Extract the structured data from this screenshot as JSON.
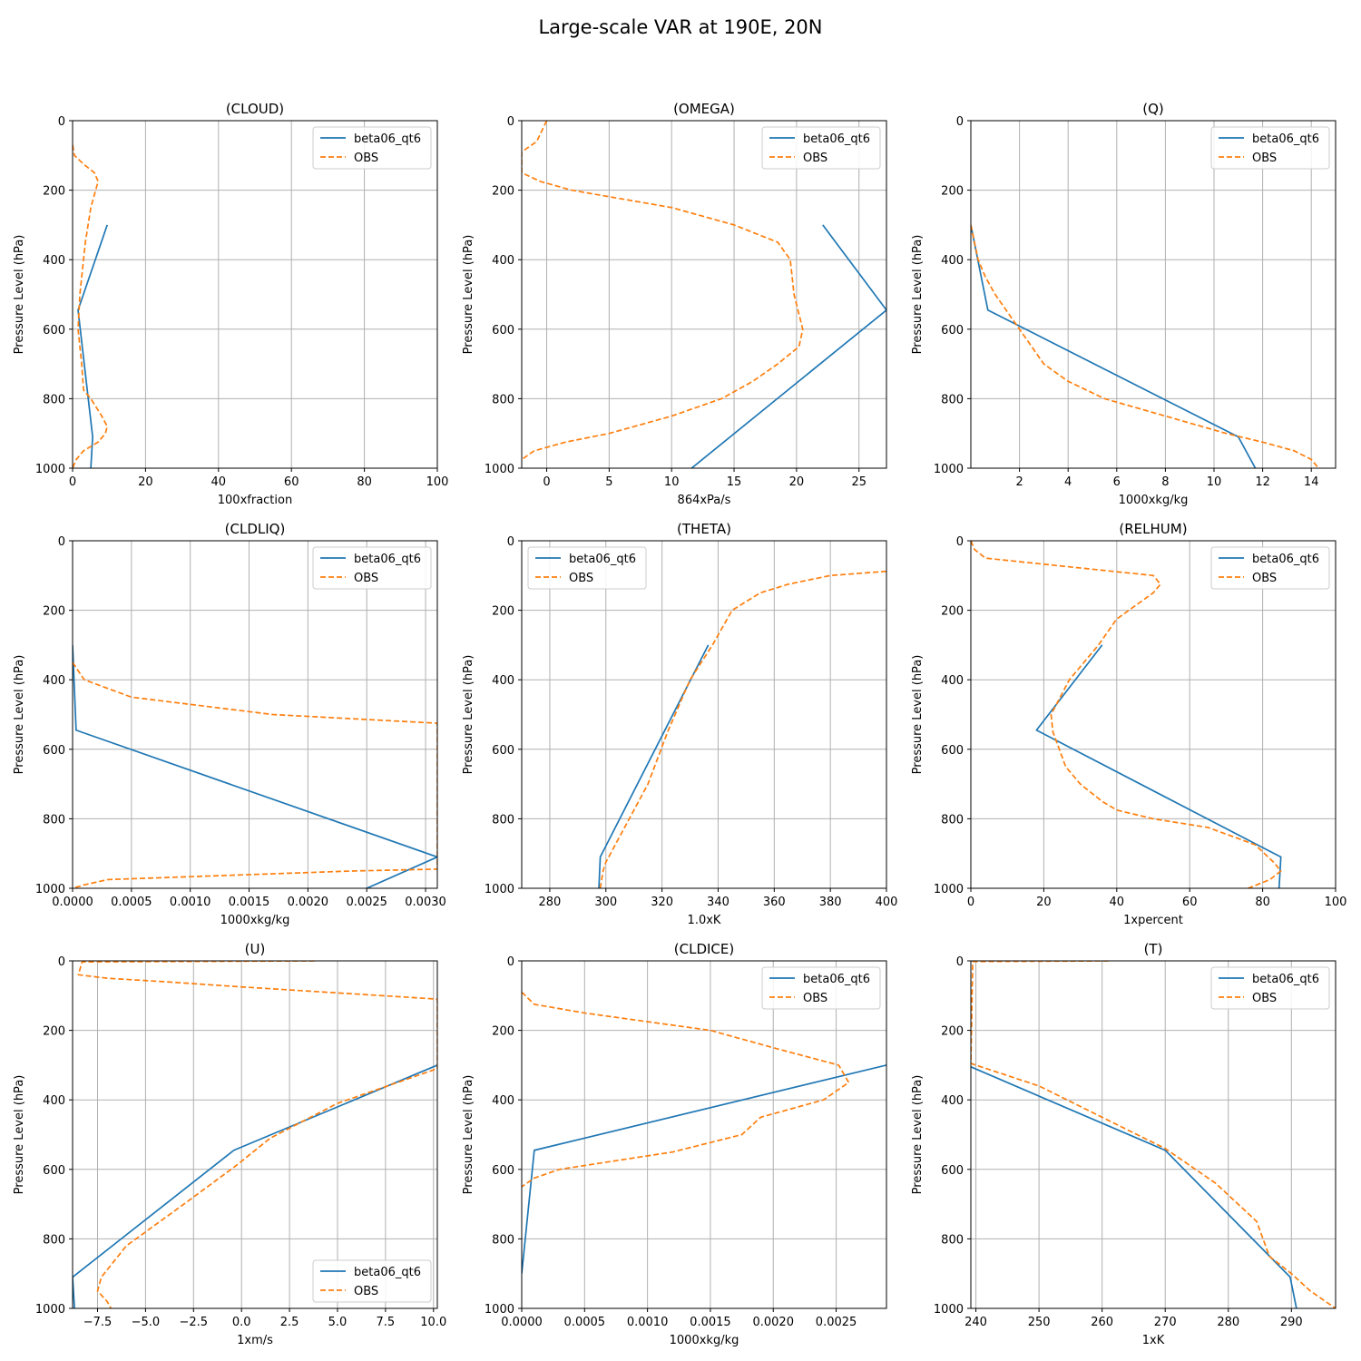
{
  "figure": {
    "suptitle": "Large-scale VAR at 190E, 20N"
  },
  "style": {
    "model_color": "#1f77b4",
    "obs_color": "#ff7f0e",
    "grid_color": "#b0b0b0"
  },
  "chart_data": [
    {
      "type": "line",
      "title": "(CLOUD)",
      "xlabel": "100xfraction",
      "ylabel": "Pressure Level (hPa)",
      "xlim": [
        0,
        100
      ],
      "ylim": [
        1000,
        0
      ],
      "xticks": [
        0,
        20,
        40,
        60,
        80,
        100
      ],
      "xticklabels": [
        "0",
        "20",
        "40",
        "60",
        "80",
        "100"
      ],
      "yticks": [
        0,
        200,
        400,
        600,
        800,
        1000
      ],
      "grid": true,
      "legend_loc": "upper right",
      "series": [
        {
          "name": "beta06_qt6",
          "style": "solid",
          "x": [
            9.5,
            1.5,
            5.5,
            5.0
          ],
          "y": [
            300,
            545,
            910,
            1000
          ]
        },
        {
          "name": "OBS",
          "style": "dashed",
          "x": [
            0,
            0.5,
            3,
            6,
            7,
            5,
            3.5,
            2.5,
            2,
            1.5,
            2.5,
            3,
            5,
            8,
            9.5,
            9,
            7,
            3,
            1,
            0
          ],
          "y": [
            70,
            100,
            125,
            150,
            175,
            250,
            350,
            450,
            500,
            600,
            700,
            775,
            800,
            850,
            880,
            900,
            925,
            950,
            975,
            1000
          ]
        }
      ]
    },
    {
      "type": "line",
      "title": "(OMEGA)",
      "xlabel": "864xPa/s",
      "ylabel": "Pressure Level (hPa)",
      "xlim": [
        -2,
        27.2
      ],
      "ylim": [
        1000,
        0
      ],
      "xticks": [
        0,
        5,
        10,
        15,
        20,
        25
      ],
      "xticklabels": [
        "0",
        "5",
        "10",
        "15",
        "20",
        "25"
      ],
      "yticks": [
        0,
        200,
        400,
        600,
        800,
        1000
      ],
      "grid": true,
      "legend_loc": "upper right",
      "series": [
        {
          "name": "beta06_qt6",
          "style": "solid",
          "x": [
            22.1,
            27.2,
            11.6
          ],
          "y": [
            300,
            545,
            1000
          ]
        },
        {
          "name": "OBS",
          "style": "dashed",
          "x": [
            0,
            -0.8,
            -2,
            -2,
            -0.5,
            2,
            10,
            15,
            18.5,
            19.5,
            19.8,
            20.5,
            20.2,
            18.5,
            16.5,
            14,
            10,
            5,
            1.5,
            -1,
            -2
          ],
          "y": [
            0,
            60,
            90,
            150,
            175,
            200,
            250,
            300,
            350,
            400,
            500,
            600,
            650,
            700,
            750,
            800,
            850,
            900,
            925,
            950,
            975
          ]
        }
      ]
    },
    {
      "type": "line",
      "title": "(Q)",
      "xlabel": "1000xkg/kg",
      "ylabel": "Pressure Level (hPa)",
      "xlim": [
        0,
        15
      ],
      "ylim": [
        1000,
        0
      ],
      "xticks": [
        2,
        4,
        6,
        8,
        10,
        12,
        14
      ],
      "xticklabels": [
        "2",
        "4",
        "6",
        "8",
        "10",
        "12",
        "14"
      ],
      "yticks": [
        0,
        200,
        400,
        600,
        800,
        1000
      ],
      "grid": true,
      "legend_loc": "upper right",
      "series": [
        {
          "name": "beta06_qt6",
          "style": "solid",
          "x": [
            0,
            0.7,
            11,
            11.7
          ],
          "y": [
            300,
            545,
            910,
            1000
          ]
        },
        {
          "name": "OBS",
          "style": "dashed",
          "x": [
            0,
            0.3,
            0.6,
            1.0,
            1.5,
            2.0,
            3.0,
            4.0,
            5.5,
            8.0,
            10.5,
            12.0,
            13.3,
            14.0,
            14.3
          ],
          "y": [
            300,
            400,
            450,
            500,
            550,
            600,
            700,
            750,
            800,
            850,
            900,
            925,
            950,
            975,
            1000
          ]
        }
      ]
    },
    {
      "type": "line",
      "title": "(CLDLIQ)",
      "xlabel": "1000xkg/kg",
      "ylabel": "Pressure Level (hPa)",
      "xlim": [
        0,
        0.0031
      ],
      "ylim": [
        1000,
        0
      ],
      "xticks": [
        0,
        0.0005,
        0.001,
        0.0015,
        0.002,
        0.0025,
        0.003
      ],
      "xticklabels": [
        "0.0000",
        "0.0005",
        "0.0010",
        "0.0015",
        "0.0020",
        "0.0025",
        "0.0030"
      ],
      "yticks": [
        0,
        200,
        400,
        600,
        800,
        1000
      ],
      "grid": true,
      "legend_loc": "upper right",
      "series": [
        {
          "name": "beta06_qt6",
          "style": "solid",
          "x": [
            0,
            3e-05,
            0.0031,
            0.0025
          ],
          "y": [
            300,
            545,
            910,
            1000
          ]
        },
        {
          "name": "OBS",
          "style": "dashed",
          "x": [
            0,
            0.0001,
            0.0005,
            0.0017,
            0.0031,
            0.0031,
            0.0031,
            0.0024,
            0.0003,
            0.0001,
            0
          ],
          "y": [
            350,
            400,
            450,
            500,
            525,
            527,
            945,
            950,
            975,
            990,
            1000
          ]
        }
      ]
    },
    {
      "type": "line",
      "title": "(THETA)",
      "xlabel": "1.0xK",
      "ylabel": "Pressure Level (hPa)",
      "xlim": [
        270,
        400
      ],
      "ylim": [
        1000,
        0
      ],
      "xticks": [
        280,
        300,
        320,
        340,
        360,
        380,
        400
      ],
      "xticklabels": [
        "280",
        "300",
        "320",
        "340",
        "360",
        "380",
        "400"
      ],
      "yticks": [
        0,
        200,
        400,
        600,
        800,
        1000
      ],
      "grid": true,
      "legend_loc": "upper left",
      "series": [
        {
          "name": "beta06_qt6",
          "style": "solid",
          "x": [
            336.5,
            298,
            297.5
          ],
          "y": [
            300,
            910,
            1000
          ]
        },
        {
          "name": "OBS",
          "style": "dashed",
          "x": [
            400,
            380,
            365,
            355,
            345,
            338,
            330,
            322,
            315,
            305,
            300,
            299,
            298
          ],
          "y": [
            88,
            100,
            125,
            150,
            200,
            300,
            400,
            550,
            700,
            850,
            925,
            950,
            1000
          ]
        }
      ]
    },
    {
      "type": "line",
      "title": "(RELHUM)",
      "xlabel": "1xpercent",
      "ylabel": "Pressure Level (hPa)",
      "xlim": [
        0,
        100
      ],
      "ylim": [
        1000,
        0
      ],
      "xticks": [
        0,
        20,
        40,
        60,
        80,
        100
      ],
      "xticklabels": [
        "0",
        "20",
        "40",
        "60",
        "80",
        "100"
      ],
      "yticks": [
        0,
        200,
        400,
        600,
        800,
        1000
      ],
      "grid": true,
      "legend_loc": "upper right",
      "series": [
        {
          "name": "beta06_qt6",
          "style": "solid",
          "x": [
            36,
            18,
            85,
            84.5
          ],
          "y": [
            300,
            545,
            910,
            1000
          ]
        },
        {
          "name": "OBS",
          "style": "dashed",
          "x": [
            0,
            1,
            4,
            50,
            52,
            50,
            40,
            35,
            27,
            22,
            22.5,
            26,
            30,
            36,
            40,
            50,
            65,
            78,
            83,
            85,
            82,
            76
          ],
          "y": [
            0,
            25,
            50,
            100,
            125,
            150,
            225,
            300,
            400,
            500,
            550,
            650,
            700,
            750,
            775,
            800,
            825,
            875,
            925,
            950,
            975,
            1000
          ]
        }
      ]
    },
    {
      "type": "line",
      "title": "(U)",
      "xlabel": "1xm/s",
      "ylabel": "Pressure Level (hPa)",
      "xlim": [
        -8.8,
        10.2
      ],
      "ylim": [
        1000,
        0
      ],
      "xticks": [
        -7.5,
        -5,
        -2.5,
        0,
        2.5,
        5,
        7.5,
        10
      ],
      "xticklabels": [
        "−7.5",
        "−5.0",
        "−2.5",
        "0.0",
        "2.5",
        "5.0",
        "7.5",
        "10.0"
      ],
      "yticks": [
        0,
        200,
        400,
        600,
        800,
        1000
      ],
      "grid": true,
      "legend_loc": "lower right",
      "series": [
        {
          "name": "beta06_qt6",
          "style": "solid",
          "x": [
            10.2,
            -0.4,
            -8.8,
            -8.7
          ],
          "y": [
            300,
            545,
            910,
            1000
          ]
        },
        {
          "name": "OBS",
          "style": "dashed",
          "x": [
            3.8,
            -8.3,
            -8.5,
            -7.0,
            -4.0,
            0,
            10.2,
            10.2,
            5.0,
            1.5,
            -0.3,
            -3,
            -6,
            -7.3,
            -7.5,
            -7.0,
            -6.8
          ],
          "y": [
            0,
            3,
            40,
            50,
            60,
            75,
            110,
            310,
            410,
            510,
            590,
            700,
            820,
            910,
            950,
            980,
            1000
          ]
        }
      ]
    },
    {
      "type": "line",
      "title": "(CLDICE)",
      "xlabel": "1000xkg/kg",
      "ylabel": "Pressure Level (hPa)",
      "xlim": [
        0,
        0.0029
      ],
      "ylim": [
        1000,
        0
      ],
      "xticks": [
        0,
        0.0005,
        0.001,
        0.0015,
        0.002,
        0.0025
      ],
      "xticklabels": [
        "0.0000",
        "0.0005",
        "0.0010",
        "0.0015",
        "0.0020",
        "0.0025"
      ],
      "yticks": [
        0,
        200,
        400,
        600,
        800,
        1000
      ],
      "grid": true,
      "legend_loc": "upper right",
      "series": [
        {
          "name": "beta06_qt6",
          "style": "solid",
          "x": [
            0.0029,
            0.0001,
            0
          ],
          "y": [
            300,
            545,
            900
          ]
        },
        {
          "name": "OBS",
          "style": "dashed",
          "x": [
            0,
            0.0001,
            0.0005,
            0.0015,
            0.002,
            0.00252,
            0.0026,
            0.0024,
            0.0019,
            0.00175,
            0.0012,
            0.0003,
            0.0001,
            0
          ],
          "y": [
            90,
            125,
            150,
            200,
            250,
            300,
            350,
            400,
            450,
            500,
            550,
            600,
            625,
            650
          ]
        }
      ]
    },
    {
      "type": "line",
      "title": "(T)",
      "xlabel": "1xK",
      "ylabel": "Pressure Level (hPa)",
      "xlim": [
        239.2,
        297
      ],
      "ylim": [
        1000,
        0
      ],
      "xticks": [
        240,
        250,
        260,
        270,
        280,
        290
      ],
      "xticklabels": [
        "240",
        "250",
        "260",
        "270",
        "280",
        "290"
      ],
      "yticks": [
        0,
        200,
        400,
        600,
        800,
        1000
      ],
      "grid": true,
      "legend_loc": "upper right",
      "series": [
        {
          "name": "beta06_qt6",
          "style": "solid",
          "x": [
            239.2,
            270,
            289.8,
            290.8
          ],
          "y": [
            305,
            545,
            910,
            1000
          ]
        },
        {
          "name": "OBS",
          "style": "dashed",
          "x": [
            261,
            239.5,
            239.2,
            240,
            250,
            260,
            270,
            278,
            284.5,
            286.5,
            290,
            293,
            297
          ],
          "y": [
            0,
            2,
            295,
            300,
            360,
            450,
            540,
            640,
            750,
            850,
            900,
            950,
            1000
          ]
        }
      ]
    }
  ]
}
